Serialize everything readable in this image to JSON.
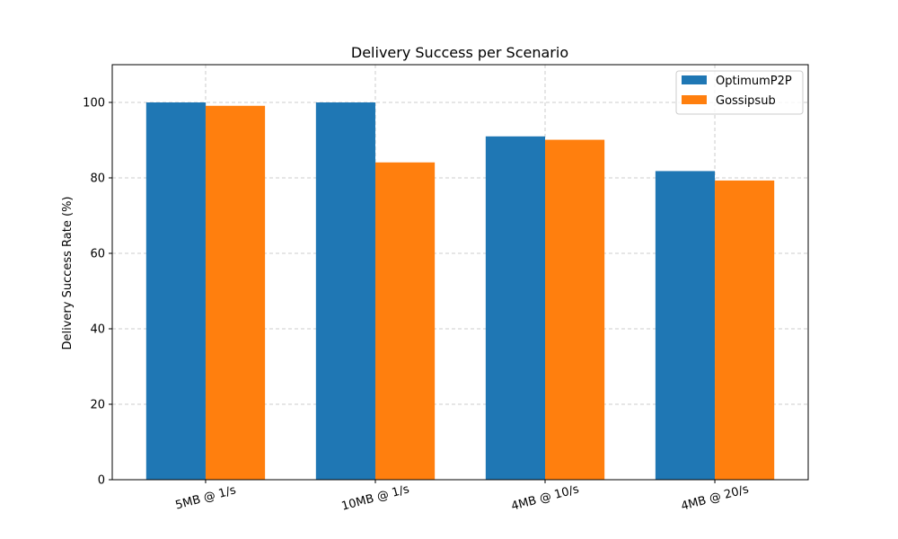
{
  "chart_data": {
    "type": "bar",
    "title": "Delivery Success per Scenario",
    "xlabel": "",
    "ylabel": "Delivery Success Rate (%)",
    "categories": [
      "5MB @ 1/s",
      "10MB @ 1/s",
      "4MB @ 10/s",
      "4MB @ 20/s"
    ],
    "series": [
      {
        "name": "OptimumP2P",
        "color": "#1f77b4",
        "values": [
          100,
          100,
          91,
          81.8
        ]
      },
      {
        "name": "Gossipsub",
        "color": "#ff7f0e",
        "values": [
          99.1,
          84.1,
          90.1,
          79.3
        ]
      }
    ],
    "ylim": [
      0,
      110
    ],
    "yticks": [
      0,
      20,
      40,
      60,
      80,
      100
    ],
    "grid": true,
    "legend_position": "top-right"
  }
}
